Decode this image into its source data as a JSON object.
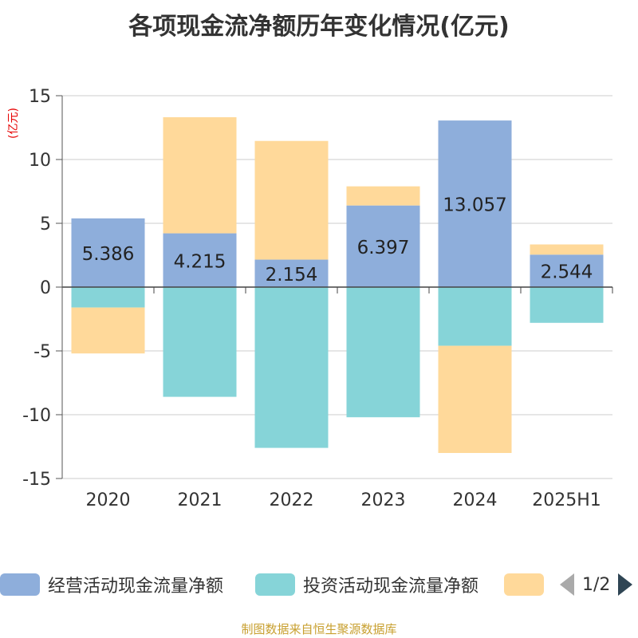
{
  "title": "各项现金流净额历年变化情况(亿元)",
  "unit_label": "(亿元)",
  "source": "制图数据来自恒生聚源数据库",
  "legend": {
    "items": [
      {
        "label": "经营活动现金流量净额",
        "color": "#8eaedb"
      },
      {
        "label": "投资活动现金流量净额",
        "color": "#86d4d8"
      },
      {
        "label": "",
        "color": "#ffd99a"
      }
    ],
    "page": "1/2"
  },
  "chart_data": {
    "type": "bar",
    "stacked": true,
    "categories": [
      "2020",
      "2021",
      "2022",
      "2023",
      "2024",
      "2025H1"
    ],
    "ylim": [
      -15,
      15
    ],
    "yticks": [
      15,
      10,
      5,
      0,
      -5,
      -10,
      -15
    ],
    "ytick_labels": [
      "15",
      "10",
      "5",
      "0",
      "-5",
      "-10",
      "-15"
    ],
    "grid": true,
    "legend_position": "bottom",
    "series": [
      {
        "name": "经营活动现金流量净额",
        "color": "#8eaedb",
        "values": [
          5.386,
          4.215,
          2.154,
          6.397,
          13.057,
          2.544
        ],
        "labels": [
          "5.386",
          "4.215",
          "2.154",
          "6.397",
          "13.057",
          "2.544"
        ]
      },
      {
        "name": "投资活动现金流量净额",
        "color": "#86d4d8",
        "values": [
          -1.6,
          -8.6,
          -12.6,
          -10.2,
          -4.6,
          -2.8
        ]
      },
      {
        "color": "#ffd99a",
        "values": [
          -3.6,
          9.1,
          9.3,
          1.5,
          -8.4,
          0.8
        ]
      }
    ]
  }
}
